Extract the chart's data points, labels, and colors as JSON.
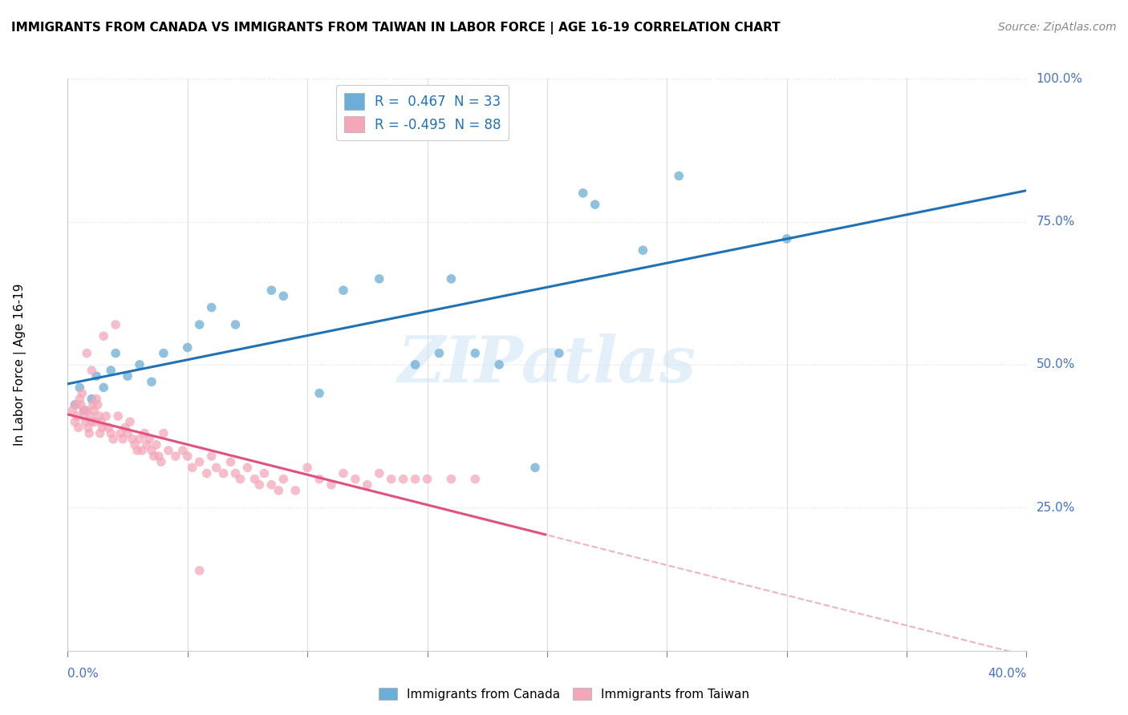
{
  "title": "IMMIGRANTS FROM CANADA VS IMMIGRANTS FROM TAIWAN IN LABOR FORCE | AGE 16-19 CORRELATION CHART",
  "source": "Source: ZipAtlas.com",
  "ylabel_label": "In Labor Force | Age 16-19",
  "watermark": "ZIPatlas",
  "legend_canada": "R =  0.467  N = 33",
  "legend_taiwan": "R = -0.495  N = 88",
  "canada_color": "#6baed6",
  "taiwan_color": "#f4a7b9",
  "canada_line_color": "#2171b5",
  "taiwan_line_color": "#e05080",
  "xmin": 0.0,
  "xmax": 40.0,
  "ymin": 0.0,
  "ymax": 100.0,
  "canada_points": [
    [
      0.3,
      43
    ],
    [
      0.5,
      46
    ],
    [
      0.7,
      42
    ],
    [
      1.0,
      44
    ],
    [
      1.2,
      48
    ],
    [
      1.5,
      46
    ],
    [
      1.8,
      49
    ],
    [
      2.0,
      52
    ],
    [
      2.5,
      48
    ],
    [
      3.0,
      50
    ],
    [
      3.5,
      47
    ],
    [
      4.0,
      52
    ],
    [
      5.0,
      53
    ],
    [
      5.5,
      57
    ],
    [
      6.0,
      60
    ],
    [
      7.0,
      57
    ],
    [
      8.5,
      63
    ],
    [
      9.0,
      62
    ],
    [
      10.5,
      45
    ],
    [
      11.5,
      63
    ],
    [
      13.0,
      65
    ],
    [
      14.5,
      50
    ],
    [
      15.5,
      52
    ],
    [
      16.0,
      65
    ],
    [
      17.0,
      52
    ],
    [
      18.0,
      50
    ],
    [
      19.5,
      32
    ],
    [
      20.5,
      52
    ],
    [
      21.5,
      80
    ],
    [
      22.0,
      78
    ],
    [
      24.0,
      70
    ],
    [
      25.5,
      83
    ],
    [
      30.0,
      72
    ]
  ],
  "taiwan_points": [
    [
      0.2,
      42
    ],
    [
      0.3,
      40
    ],
    [
      0.35,
      43
    ],
    [
      0.4,
      41
    ],
    [
      0.45,
      39
    ],
    [
      0.5,
      44
    ],
    [
      0.55,
      43
    ],
    [
      0.6,
      45
    ],
    [
      0.65,
      42
    ],
    [
      0.7,
      41
    ],
    [
      0.75,
      40
    ],
    [
      0.8,
      42
    ],
    [
      0.85,
      39
    ],
    [
      0.9,
      38
    ],
    [
      0.95,
      41
    ],
    [
      1.0,
      40
    ],
    [
      1.05,
      43
    ],
    [
      1.1,
      42
    ],
    [
      1.15,
      40
    ],
    [
      1.2,
      44
    ],
    [
      1.25,
      43
    ],
    [
      1.3,
      41
    ],
    [
      1.35,
      38
    ],
    [
      1.4,
      40
    ],
    [
      1.45,
      39
    ],
    [
      1.5,
      55
    ],
    [
      1.6,
      41
    ],
    [
      1.7,
      39
    ],
    [
      1.8,
      38
    ],
    [
      1.9,
      37
    ],
    [
      2.0,
      57
    ],
    [
      2.1,
      41
    ],
    [
      2.2,
      38
    ],
    [
      2.3,
      37
    ],
    [
      2.4,
      39
    ],
    [
      2.5,
      38
    ],
    [
      2.6,
      40
    ],
    [
      2.7,
      37
    ],
    [
      2.8,
      36
    ],
    [
      2.9,
      35
    ],
    [
      3.0,
      37
    ],
    [
      3.1,
      35
    ],
    [
      3.2,
      38
    ],
    [
      3.3,
      36
    ],
    [
      3.4,
      37
    ],
    [
      3.5,
      35
    ],
    [
      3.6,
      34
    ],
    [
      3.7,
      36
    ],
    [
      3.8,
      34
    ],
    [
      3.9,
      33
    ],
    [
      4.0,
      38
    ],
    [
      4.2,
      35
    ],
    [
      4.5,
      34
    ],
    [
      4.8,
      35
    ],
    [
      5.0,
      34
    ],
    [
      5.2,
      32
    ],
    [
      5.5,
      33
    ],
    [
      5.8,
      31
    ],
    [
      6.0,
      34
    ],
    [
      6.2,
      32
    ],
    [
      6.5,
      31
    ],
    [
      6.8,
      33
    ],
    [
      7.0,
      31
    ],
    [
      7.2,
      30
    ],
    [
      7.5,
      32
    ],
    [
      7.8,
      30
    ],
    [
      8.0,
      29
    ],
    [
      8.2,
      31
    ],
    [
      8.5,
      29
    ],
    [
      8.8,
      28
    ],
    [
      9.0,
      30
    ],
    [
      9.5,
      28
    ],
    [
      10.0,
      32
    ],
    [
      10.5,
      30
    ],
    [
      11.0,
      29
    ],
    [
      11.5,
      31
    ],
    [
      12.0,
      30
    ],
    [
      12.5,
      29
    ],
    [
      13.0,
      31
    ],
    [
      13.5,
      30
    ],
    [
      14.0,
      30
    ],
    [
      14.5,
      30
    ],
    [
      15.0,
      30
    ],
    [
      16.0,
      30
    ],
    [
      17.0,
      30
    ],
    [
      1.0,
      49
    ],
    [
      0.8,
      52
    ],
    [
      5.5,
      14
    ]
  ],
  "ytick_positions": [
    0,
    25,
    50,
    75,
    100
  ],
  "ytick_labels": [
    "",
    "25.0%",
    "50.0%",
    "75.0%",
    "100.0%"
  ],
  "xtick_left_label": "0.0%",
  "xtick_right_label": "40.0%",
  "grid_color": "#e0e0e0",
  "background_color": "#ffffff"
}
